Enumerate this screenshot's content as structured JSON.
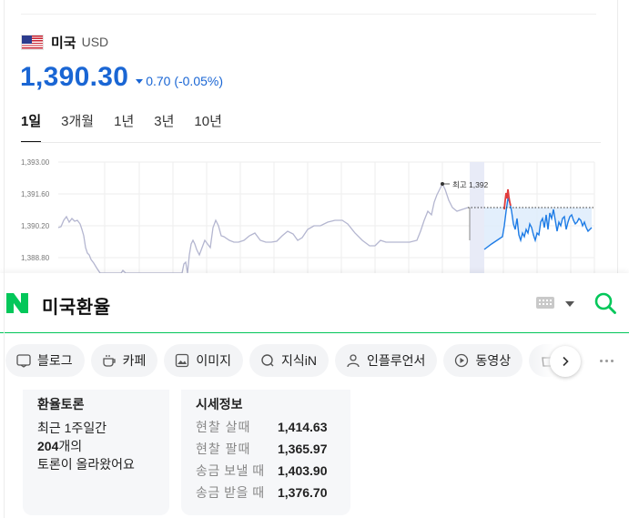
{
  "currency": {
    "name": "미국",
    "code": "USD",
    "rate": "1,390.30",
    "change": "0.70 (-0.05%)",
    "direction": "down",
    "accent_color": "#1a66d4"
  },
  "period_tabs": [
    {
      "label": "1일",
      "active": true
    },
    {
      "label": "3개월",
      "active": false
    },
    {
      "label": "1년",
      "active": false
    },
    {
      "label": "3년",
      "active": false
    },
    {
      "label": "10년",
      "active": false
    }
  ],
  "chart_data": {
    "type": "line",
    "y_ticks": [
      "1,393.00",
      "1,391.60",
      "1,390.20",
      "1,388.80"
    ],
    "high_label": "최고 1,392",
    "grid": true,
    "series_colors": {
      "past": "#b4b6d0",
      "current": "#1e7ce6",
      "spike": "#e03c3c"
    }
  },
  "search": {
    "query": "미국환율",
    "logo_letter": "N",
    "brand_color": "#03c75a"
  },
  "filters": [
    {
      "label": "블로그",
      "icon": "blog-icon"
    },
    {
      "label": "카페",
      "icon": "cafe-icon"
    },
    {
      "label": "이미지",
      "icon": "image-icon"
    },
    {
      "label": "지식iN",
      "icon": "question-icon"
    },
    {
      "label": "인플루언서",
      "icon": "person-icon"
    },
    {
      "label": "동영상",
      "icon": "play-icon"
    },
    {
      "label": "",
      "icon": "shopping-icon"
    }
  ],
  "debate": {
    "title": "환율토론",
    "line1": "최근 1주일간",
    "count": "204",
    "count_suffix": "개의",
    "line3": "토론이 올라왔어요"
  },
  "market": {
    "title": "시세정보",
    "rows": [
      {
        "label": "현찰 살때",
        "value": "1,414.63"
      },
      {
        "label": "현찰 팔때",
        "value": "1,365.97"
      },
      {
        "label": "송금 보낼 때",
        "value": "1,403.90"
      },
      {
        "label": "송금 받을 때",
        "value": "1,376.70"
      }
    ]
  }
}
